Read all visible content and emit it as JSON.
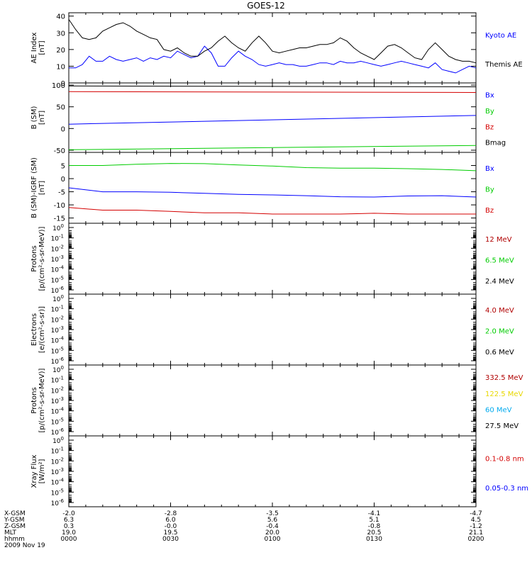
{
  "title": "GOES-12",
  "colors": {
    "black": "#000000",
    "blue": "#0000ff",
    "red": "#d40000",
    "green": "#00cc00",
    "yellow": "#e8d800",
    "cyan": "#00aaee",
    "darkred": "#b00000"
  },
  "chart_data": [
    {
      "id": "ae",
      "type": "line",
      "ylabel": "AE Index\n[nT]",
      "ylim": [
        0,
        42
      ],
      "ticks": [
        "0",
        "10",
        "20",
        "30",
        "40"
      ],
      "tick_values": [
        0,
        10,
        20,
        30,
        40
      ],
      "x": [
        0,
        2,
        4,
        6,
        8,
        10,
        12,
        14,
        16,
        18,
        20,
        22,
        24,
        26,
        28,
        30,
        32,
        34,
        36,
        38,
        40,
        42,
        44,
        46,
        48,
        50,
        52,
        54,
        56,
        58,
        60,
        62,
        64,
        66,
        68,
        70,
        72,
        74,
        76,
        78,
        80,
        82,
        84,
        86,
        88,
        90,
        92,
        94,
        96,
        98,
        100,
        102,
        104,
        106,
        108,
        110,
        112,
        114,
        116,
        118,
        120
      ],
      "series": [
        {
          "name": "Kyoto AE",
          "color": "blue",
          "values": [
            9,
            9,
            11,
            16,
            13,
            13,
            16,
            14,
            13,
            14,
            15,
            13,
            15,
            14,
            16,
            15,
            19,
            17,
            15,
            16,
            22,
            18,
            10,
            10,
            15,
            19,
            16,
            14,
            11,
            10,
            11,
            12,
            11,
            11,
            10,
            10,
            11,
            12,
            12,
            11,
            13,
            12,
            12,
            13,
            12,
            11,
            10,
            11,
            12,
            13,
            12,
            11,
            10,
            9,
            12,
            8,
            7,
            6,
            8,
            10,
            9
          ]
        },
        {
          "name": "Themis AE",
          "color": "black",
          "values": [
            38,
            32,
            27,
            26,
            27,
            31,
            33,
            35,
            36,
            34,
            31,
            29,
            27,
            26,
            20,
            19,
            21,
            18,
            16,
            16,
            19,
            21,
            25,
            28,
            24,
            21,
            19,
            24,
            28,
            24,
            19,
            18,
            19,
            20,
            21,
            21,
            22,
            23,
            23,
            24,
            27,
            25,
            21,
            18,
            16,
            14,
            18,
            22,
            23,
            21,
            18,
            15,
            14,
            20,
            24,
            20,
            16,
            14,
            13,
            13,
            12
          ]
        }
      ],
      "right_labels": [
        {
          "text": "Kyoto AE",
          "color": "blue"
        },
        {
          "text": "Themis AE",
          "color": "black"
        }
      ]
    },
    {
      "id": "bsm",
      "type": "line",
      "ylabel": "B (SM)\n[nT]",
      "ylim": [
        -55,
        105
      ],
      "ticks": [
        "-50",
        "0",
        "50",
        "100"
      ],
      "tick_values": [
        -50,
        0,
        50,
        100
      ],
      "x": [
        0,
        120
      ],
      "series": [
        {
          "name": "Bx",
          "color": "blue",
          "values": [
            10,
            30
          ]
        },
        {
          "name": "By",
          "color": "green",
          "values": [
            -49,
            -39
          ]
        },
        {
          "name": "Bz",
          "color": "red",
          "values": [
            85,
            83
          ]
        },
        {
          "name": "Bmag",
          "color": "black",
          "values": [
            98,
            96
          ]
        }
      ],
      "right_labels": [
        {
          "text": "Bx",
          "color": "blue"
        },
        {
          "text": "By",
          "color": "green"
        },
        {
          "text": "Bz",
          "color": "red"
        },
        {
          "text": "Bmag",
          "color": "black"
        }
      ]
    },
    {
      "id": "bdiff",
      "type": "line",
      "ylabel": "B (SM)-IGRF (SM)\n[nT]",
      "ylim": [
        -17,
        10
      ],
      "ticks": [
        "-15",
        "-10",
        "-5",
        "0",
        "5"
      ],
      "tick_values": [
        -15,
        -10,
        -5,
        0,
        5
      ],
      "x": [
        0,
        10,
        20,
        30,
        40,
        50,
        60,
        70,
        80,
        90,
        100,
        110,
        120
      ],
      "series": [
        {
          "name": "Bx",
          "color": "blue",
          "values": [
            -3.5,
            -5,
            -5,
            -5.2,
            -5.6,
            -6,
            -6.2,
            -6.5,
            -6.9,
            -7,
            -6.6,
            -6.5,
            -7
          ]
        },
        {
          "name": "By",
          "color": "green",
          "values": [
            5,
            5,
            5.5,
            5.8,
            5.7,
            5.2,
            4.8,
            4.2,
            4,
            4,
            3.8,
            3.5,
            3
          ]
        },
        {
          "name": "Bz",
          "color": "red",
          "values": [
            -11,
            -12,
            -12,
            -12.5,
            -13,
            -13,
            -13.5,
            -13.5,
            -13.5,
            -13.2,
            -13.5,
            -13.5,
            -13.5
          ]
        }
      ],
      "right_labels": [
        {
          "text": "Bx",
          "color": "blue"
        },
        {
          "text": "By",
          "color": "green"
        },
        {
          "text": "Bz",
          "color": "red"
        }
      ]
    },
    {
      "id": "protons1",
      "type": "line",
      "log": true,
      "ylabel": "Protons\n[p/(cm²-s-sr-MeV)]",
      "right_labels": [
        {
          "text": "12 MeV",
          "color": "darkred"
        },
        {
          "text": "6.5 MeV",
          "color": "green"
        },
        {
          "text": "2.4 MeV",
          "color": "black"
        }
      ]
    },
    {
      "id": "electrons",
      "type": "line",
      "log": true,
      "ylabel": "Electrons\n[e/(cm²-s-sr)]",
      "right_labels": [
        {
          "text": "4.0 MeV",
          "color": "darkred"
        },
        {
          "text": "2.0 MeV",
          "color": "green"
        },
        {
          "text": "0.6 MeV",
          "color": "black"
        }
      ]
    },
    {
      "id": "protons2",
      "type": "line",
      "log": true,
      "ylabel": "Protons\n[p/(cm²-s-sr-MeV)]",
      "right_labels": [
        {
          "text": "332.5 MeV",
          "color": "darkred"
        },
        {
          "text": "122.5 MeV",
          "color": "yellow"
        },
        {
          "text": "60 MeV",
          "color": "cyan"
        },
        {
          "text": "27.5 MeV",
          "color": "black"
        }
      ]
    },
    {
      "id": "xray",
      "type": "line",
      "log": true,
      "ylabel": "Xray Flux\n[W/m²]",
      "right_labels": [
        {
          "text": "0.1-0.8 nm",
          "color": "red"
        },
        {
          "text": "0.05-0.3 nm",
          "color": "blue"
        }
      ]
    }
  ],
  "log_ticks": [
    {
      "base": "10",
      "exp": "0"
    },
    {
      "base": "10",
      "exp": "-1"
    },
    {
      "base": "10",
      "exp": "-2"
    },
    {
      "base": "10",
      "exp": "-3"
    },
    {
      "base": "10",
      "exp": "-4"
    },
    {
      "base": "10",
      "exp": "-5"
    },
    {
      "base": "10",
      "exp": "-6"
    }
  ],
  "xaxis": {
    "row_labels": [
      "X-GSM",
      "Y-GSM",
      "Z-GSM",
      "MLT",
      "hhmm",
      "2009 Nov 19"
    ],
    "columns": [
      [
        "-2.0",
        "6.3",
        "0.3",
        "19.0",
        "0000"
      ],
      [
        "-2.8",
        "6.0",
        "-0.0",
        "19.5",
        "0030"
      ],
      [
        "-3.5",
        "5.6",
        "-0.4",
        "20.0",
        "0100"
      ],
      [
        "-4.1",
        "5.1",
        "-0.8",
        "20.5",
        "0130"
      ],
      [
        "-4.7",
        "4.5",
        "-1.2",
        "21.1",
        "0200"
      ]
    ]
  }
}
